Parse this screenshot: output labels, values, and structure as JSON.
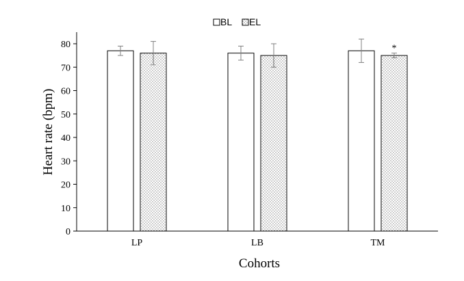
{
  "chart_data": {
    "type": "bar",
    "categories": [
      "LP",
      "LB",
      "TM"
    ],
    "series": [
      {
        "name": "BL",
        "values": [
          77,
          76,
          77
        ],
        "error": [
          2,
          3,
          5
        ],
        "fill": "#ffffff",
        "pattern": "solid"
      },
      {
        "name": "EL",
        "values": [
          76,
          75,
          75
        ],
        "error": [
          5,
          5,
          1
        ],
        "fill": "#ffffff",
        "pattern": "dots"
      }
    ],
    "annotations": [
      {
        "category": "TM",
        "series": "EL",
        "text": "*"
      }
    ],
    "xlabel": "Cohorts",
    "ylabel": "Heart rate (bpm)",
    "ylim": [
      0,
      80
    ],
    "yticks": [
      0,
      10,
      20,
      30,
      40,
      50,
      60,
      70,
      80
    ],
    "legend_position": "top-center",
    "grid": false,
    "colors": {
      "axis": "#000000",
      "bar_edge": "#000000",
      "error_bar": "#7f7f7f",
      "dots": "#555555"
    }
  }
}
